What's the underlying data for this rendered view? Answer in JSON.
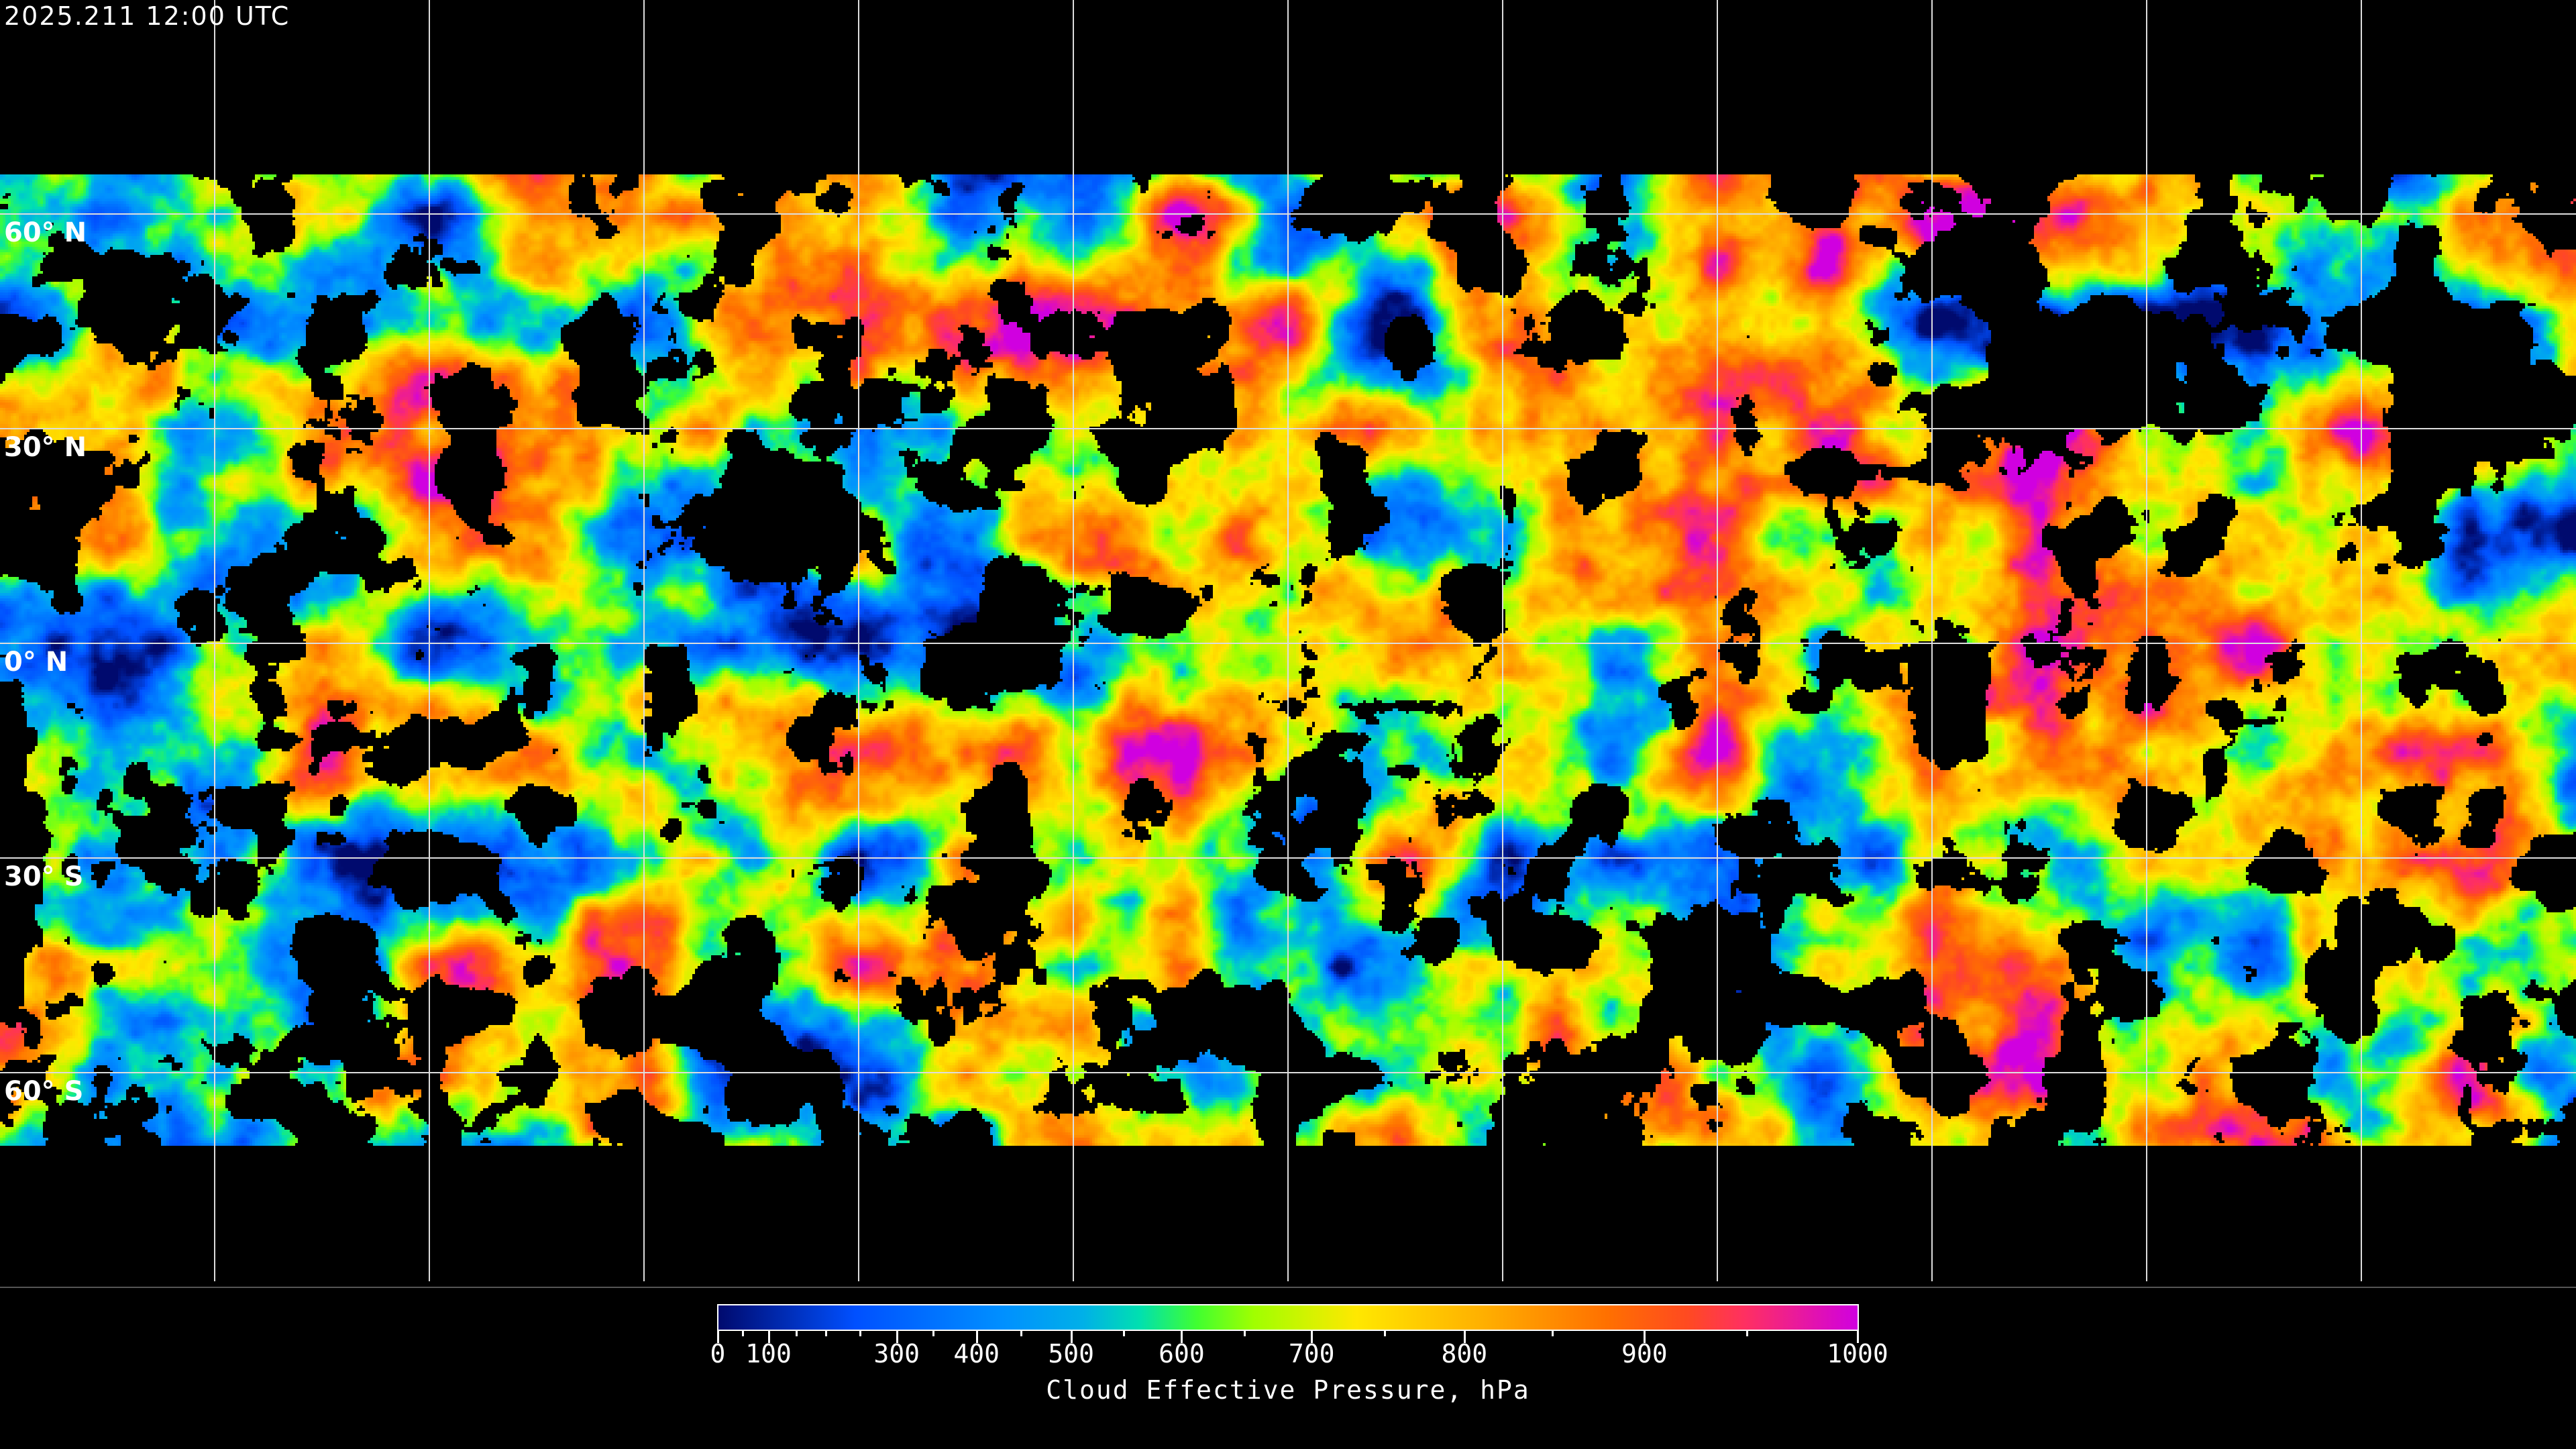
{
  "header": {
    "title": "2025.211 12:00 UTC"
  },
  "map": {
    "projection": "equirectangular",
    "lat_labels": [
      "60° N",
      "30° N",
      "0° N",
      "30° S",
      "60° S"
    ],
    "grid_spacing_degrees": 30,
    "grid_color": "#ffffff",
    "coastline_color": "#ffffff",
    "no_data_color": "#000000"
  },
  "colorbar": {
    "title": "Cloud Effective Pressure, hPa",
    "range": [
      0,
      1000
    ],
    "major_ticks": [
      "0",
      "100",
      "300",
      "400",
      "500",
      "600",
      "700",
      "800",
      "900",
      "1000"
    ],
    "minor_ticks": [
      50,
      150,
      200,
      250,
      350,
      450,
      550,
      650,
      750,
      850,
      950
    ],
    "colors": [
      "#000a6e",
      "#0050ff",
      "#0090ff",
      "#00b0e8",
      "#00e0b0",
      "#40ff30",
      "#a0ff00",
      "#ffe800",
      "#ffb000",
      "#ff7000",
      "#ff4a20",
      "#ff3060",
      "#d000e0"
    ]
  }
}
